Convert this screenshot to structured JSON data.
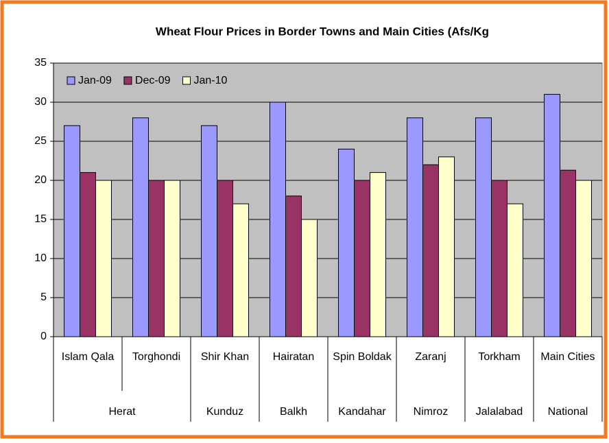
{
  "chart_data": {
    "type": "bar",
    "title": "Wheat Flour Prices in Border Towns and Main Cities (Afs/Kg",
    "categories": [
      "Islam Qala",
      "Torghondi",
      "Shir Khan",
      "Hairatan",
      "Spin Boldak",
      "Zaranj",
      "Torkham",
      "Main Cities"
    ],
    "category_groups": [
      "Herat",
      "Herat",
      "Kunduz",
      "Balkh",
      "Kandahar",
      "Nimroz",
      "Jalalabad",
      "National"
    ],
    "series": [
      {
        "name": "Jan-09",
        "color": "#9999ff",
        "values": [
          27,
          28,
          27,
          30,
          24,
          28,
          28,
          31
        ]
      },
      {
        "name": "Dec-09",
        "color": "#993366",
        "values": [
          21,
          20,
          20,
          18,
          20,
          22,
          20,
          21.3
        ]
      },
      {
        "name": "Jan-10",
        "color": "#ffffcc",
        "values": [
          20,
          20,
          17,
          15,
          21,
          23,
          17,
          20
        ]
      }
    ],
    "ylim": [
      0,
      35
    ],
    "yticks": [
      0,
      5,
      10,
      15,
      20,
      25,
      30,
      35
    ],
    "grid": true,
    "legend": "top-left",
    "plot_background": "#c0c0c0"
  }
}
